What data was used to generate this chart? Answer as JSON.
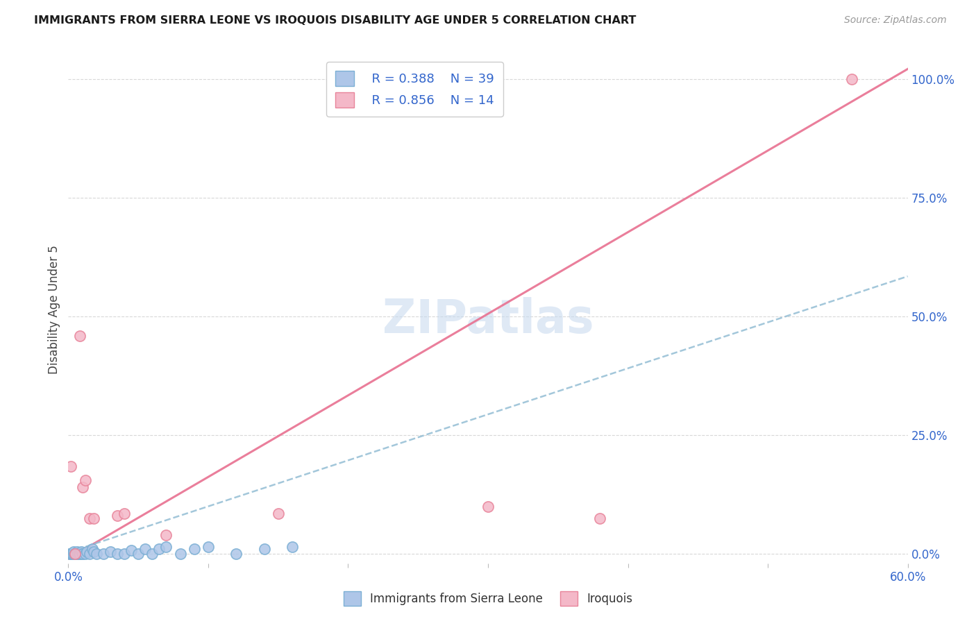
{
  "title": "IMMIGRANTS FROM SIERRA LEONE VS IROQUOIS DISABILITY AGE UNDER 5 CORRELATION CHART",
  "source": "Source: ZipAtlas.com",
  "ylabel": "Disability Age Under 5",
  "xlim": [
    0.0,
    0.6
  ],
  "ylim": [
    -0.02,
    1.05
  ],
  "xticks": [
    0.0,
    0.1,
    0.2,
    0.3,
    0.4,
    0.5,
    0.6
  ],
  "xticklabels": [
    "0.0%",
    "",
    "",
    "",
    "",
    "",
    "60.0%"
  ],
  "yticks_right": [
    0.0,
    0.25,
    0.5,
    0.75,
    1.0
  ],
  "yticklabels_right": [
    "0.0%",
    "25.0%",
    "50.0%",
    "75.0%",
    "100.0%"
  ],
  "watermark": "ZIPatlas",
  "legend_r1": "R = 0.388",
  "legend_n1": "N = 39",
  "legend_r2": "R = 0.856",
  "legend_n2": "N = 14",
  "sierra_leone_color": "#aec6e8",
  "sierra_leone_edge_color": "#7bafd4",
  "iroquois_color": "#f4b8c8",
  "iroquois_edge_color": "#e8849a",
  "blue_line_color": "#93bdd4",
  "pink_line_color": "#e87090",
  "background_color": "#ffffff",
  "grid_color": "#d8d8d8",
  "sierra_leone_x": [
    0.001,
    0.002,
    0.002,
    0.003,
    0.003,
    0.004,
    0.004,
    0.005,
    0.005,
    0.006,
    0.006,
    0.007,
    0.008,
    0.008,
    0.009,
    0.01,
    0.01,
    0.012,
    0.013,
    0.015,
    0.017,
    0.018,
    0.02,
    0.025,
    0.03,
    0.035,
    0.04,
    0.045,
    0.05,
    0.055,
    0.06,
    0.065,
    0.07,
    0.08,
    0.09,
    0.1,
    0.12,
    0.14,
    0.16
  ],
  "sierra_leone_y": [
    0.0,
    0.0,
    0.0,
    0.0,
    0.0,
    0.0,
    0.005,
    0.0,
    0.0,
    0.005,
    0.0,
    0.0,
    0.0,
    0.0,
    0.005,
    0.0,
    0.0,
    0.0,
    0.005,
    0.0,
    0.01,
    0.005,
    0.0,
    0.0,
    0.005,
    0.0,
    0.0,
    0.008,
    0.0,
    0.01,
    0.0,
    0.01,
    0.015,
    0.0,
    0.01,
    0.015,
    0.0,
    0.01,
    0.015
  ],
  "iroquois_x": [
    0.002,
    0.005,
    0.008,
    0.01,
    0.012,
    0.015,
    0.018,
    0.035,
    0.04,
    0.07,
    0.15,
    0.3,
    0.38,
    0.56
  ],
  "iroquois_y": [
    0.185,
    0.0,
    0.46,
    0.14,
    0.155,
    0.075,
    0.075,
    0.08,
    0.085,
    0.04,
    0.085,
    0.1,
    0.075,
    1.0
  ],
  "blue_line_slope": 0.97,
  "blue_line_intercept": 0.003,
  "pink_line_slope": 1.72,
  "pink_line_intercept": -0.01
}
